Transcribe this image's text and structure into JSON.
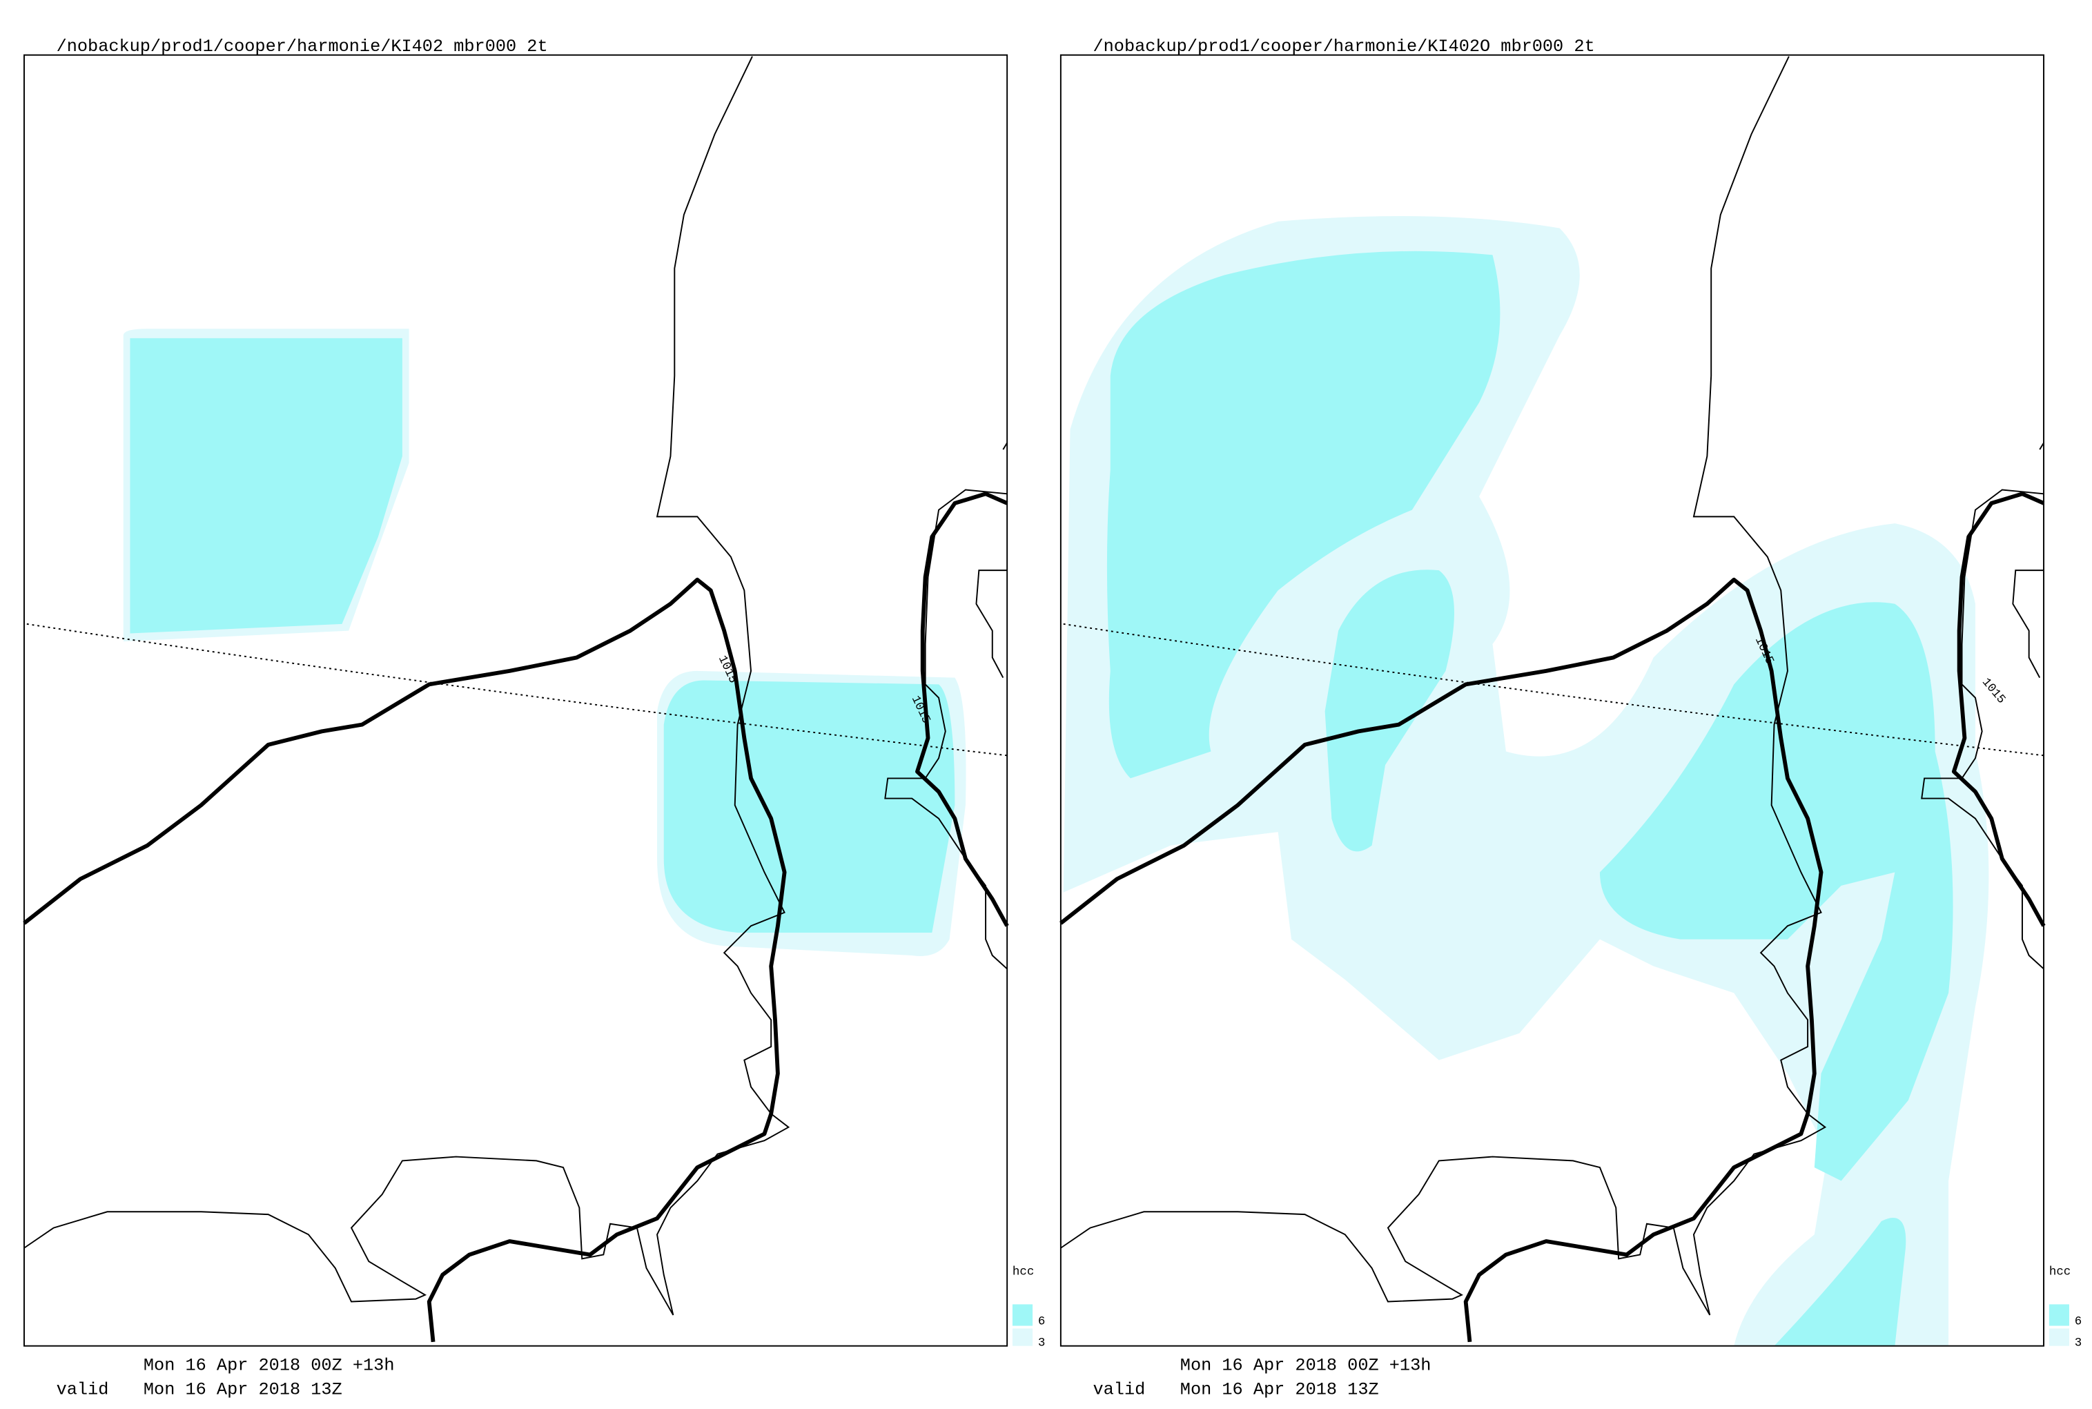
{
  "panels": [
    {
      "title": "/nobackup/prod1/cooper/harmonie/KI402 mbr000 2t",
      "base_time": "Mon 16 Apr 2018 00Z +13h",
      "valid_label": "valid",
      "valid_time": "Mon 16 Apr 2018 13Z",
      "contour_labels": [
        "1015",
        "1015"
      ],
      "legend": {
        "title": "hcc",
        "levels": [
          "6",
          "3"
        ]
      }
    },
    {
      "title": "/nobackup/prod1/cooper/harmonie/KI402O mbr000 2t",
      "base_time": "Mon 16 Apr 2018 00Z +13h",
      "valid_label": "valid",
      "valid_time": "Mon 16 Apr 2018 13Z",
      "contour_labels": [
        "1015",
        "1015"
      ],
      "legend": {
        "title": "hcc",
        "levels": [
          "6",
          "3"
        ]
      }
    }
  ]
}
